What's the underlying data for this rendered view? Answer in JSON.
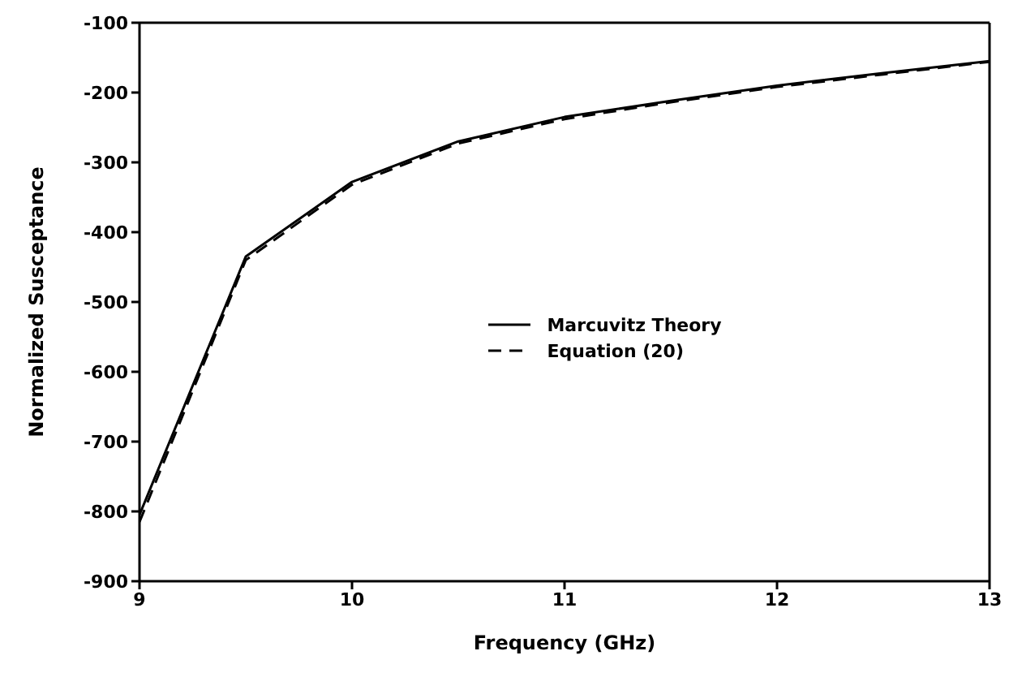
{
  "chart_data": {
    "type": "line",
    "xlabel": "Frequency  (GHz)",
    "ylabel": "Normalized  Susceptance",
    "x": [
      9,
      9.5,
      10,
      10.5,
      11,
      11.5,
      12,
      12.5,
      13
    ],
    "series": [
      {
        "name": "Marcuvitz  Theory",
        "color": "#000000",
        "line_style": "solid",
        "values": [
          -805,
          -435,
          -328,
          -270,
          -235,
          -212,
          -190,
          -172,
          -155
        ]
      },
      {
        "name": "Equation  (20)",
        "color": "#000000",
        "line_style": "dashed",
        "values": [
          -815,
          -440,
          -332,
          -273,
          -238,
          -214,
          -192,
          -174,
          -156
        ]
      }
    ],
    "xlim": [
      9,
      13
    ],
    "xticks": [
      9,
      10,
      11,
      12,
      13
    ],
    "ylim": [
      -900,
      -100
    ],
    "yticks": [
      -900,
      -800,
      -700,
      -600,
      -500,
      -400,
      -300,
      -200,
      -100
    ],
    "grid": false,
    "legend": "center",
    "marker": "none"
  }
}
